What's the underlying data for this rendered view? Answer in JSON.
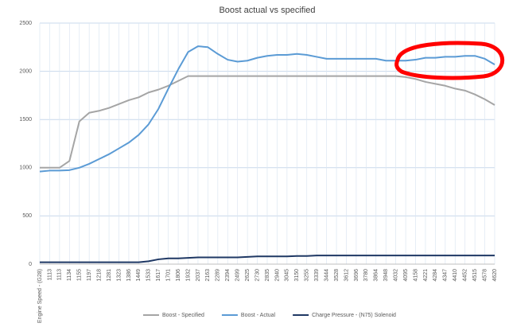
{
  "chart_data": {
    "type": "line",
    "title": "Boost actual vs specified",
    "categories": [
      "Engine Speed - (G28)",
      "1113",
      "1113",
      "1134",
      "1155",
      "1197",
      "1218",
      "1281",
      "1323",
      "1386",
      "1449",
      "1533",
      "1617",
      "1701",
      "1806",
      "1932",
      "2037",
      "2163",
      "2289",
      "2394",
      "2499",
      "2625",
      "2730",
      "2835",
      "2940",
      "3045",
      "3150",
      "3255",
      "3339",
      "3444",
      "3528",
      "3612",
      "3696",
      "3780",
      "3864",
      "3948",
      "4032",
      "4095",
      "4158",
      "4221",
      "4284",
      "4347",
      "4410",
      "4452",
      "4515",
      "4578",
      "4620"
    ],
    "series": [
      {
        "name": "Boost - Specified",
        "color": "#a5a5a5",
        "values": [
          1000,
          1000,
          1000,
          1070,
          1480,
          1570,
          1590,
          1620,
          1660,
          1700,
          1730,
          1780,
          1810,
          1850,
          1900,
          1950,
          1950,
          1950,
          1950,
          1950,
          1950,
          1950,
          1950,
          1950,
          1950,
          1950,
          1950,
          1950,
          1950,
          1950,
          1950,
          1950,
          1950,
          1950,
          1950,
          1950,
          1950,
          1940,
          1920,
          1890,
          1870,
          1850,
          1820,
          1800,
          1760,
          1710,
          1650
        ]
      },
      {
        "name": "Boost - Actual",
        "color": "#5b9bd5",
        "values": [
          960,
          970,
          970,
          975,
          1000,
          1040,
          1090,
          1140,
          1200,
          1260,
          1340,
          1450,
          1610,
          1820,
          2020,
          2200,
          2260,
          2250,
          2180,
          2120,
          2100,
          2110,
          2140,
          2160,
          2170,
          2170,
          2180,
          2170,
          2150,
          2130,
          2130,
          2130,
          2130,
          2130,
          2130,
          2110,
          2110,
          2110,
          2120,
          2140,
          2140,
          2150,
          2150,
          2160,
          2160,
          2130,
          2070
        ]
      },
      {
        "name": "Charge Pressure - (N75) Solenoid",
        "color": "#1f3864",
        "values": [
          20,
          20,
          20,
          20,
          20,
          20,
          20,
          20,
          20,
          20,
          20,
          30,
          50,
          60,
          60,
          65,
          70,
          70,
          70,
          70,
          70,
          75,
          80,
          80,
          80,
          80,
          85,
          85,
          90,
          90,
          90,
          90,
          90,
          90,
          90,
          90,
          90,
          90,
          90,
          90,
          90,
          90,
          90,
          90,
          90,
          90,
          90
        ]
      }
    ],
    "ylim": [
      0,
      2500
    ],
    "yticks": [
      0,
      500,
      1000,
      1500,
      2000,
      2500
    ],
    "grid": true,
    "legend": "bottom"
  }
}
